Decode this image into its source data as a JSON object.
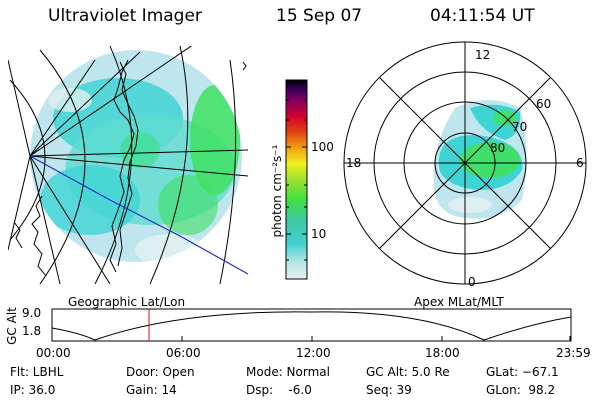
{
  "header": {
    "instrument": "Ultraviolet Imager",
    "date": "15 Sep 07",
    "time": "04:11:54 UT"
  },
  "geographic_panel": {
    "caption": "Geographic Lat/Lon",
    "colors": {
      "fill_light": "#bfe6ee",
      "fill_cyan": "#3fd4d4",
      "fill_green": "#40e060",
      "track": "#1f2fc8",
      "coast": "#000000"
    }
  },
  "colorbar": {
    "unit_label": "photon cm⁻²s⁻¹",
    "ticks": [
      "100",
      "10"
    ],
    "scale": "log",
    "colors": [
      "#e6f0f0",
      "#b9e6e6",
      "#40d0d0",
      "#40c8a0",
      "#40e040",
      "#a0e030",
      "#f0f020",
      "#f0a010",
      "#e04010",
      "#d00030",
      "#800060",
      "#300050",
      "#000000"
    ]
  },
  "polar_panel": {
    "caption": "Apex MLat/MLT",
    "mlt_labels": {
      "top": "12",
      "left": "18",
      "right": "6",
      "bottom": "0"
    },
    "mlat_labels": [
      "60",
      "70",
      "80"
    ]
  },
  "altitude_plot": {
    "ylabel": "GC Alt",
    "yticks": [
      "9.0",
      "1.8"
    ],
    "xticks": [
      "00:00",
      "06:00",
      "12:00",
      "18:00",
      "23:59"
    ],
    "marker_time": "04:11:54",
    "colors": {
      "curve": "#000000",
      "marker": "#e01010"
    }
  },
  "info": {
    "flt": "Flt: LBHL",
    "ip": "IP: 36.0",
    "door": "Door: Open",
    "gain": "Gain: 14",
    "mode": "Mode: Normal",
    "dsp": "Dsp:    -6.0",
    "gcalt": "GC Alt: 5.0 Re",
    "seq": "Seq: 39",
    "glat": "GLat: −67.1",
    "glon": "GLon:  98.2"
  }
}
